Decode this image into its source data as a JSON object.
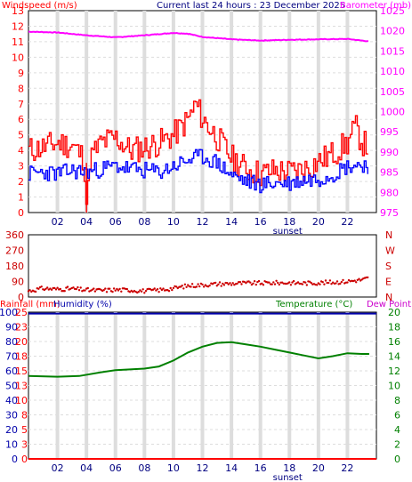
{
  "colors": {
    "wind_speed": "#ff0000",
    "wind_avg": "#0000ff",
    "barometer": "#ff00ff",
    "wind_dir": "#cc0000",
    "humidity": "#0000aa",
    "temperature": "#008000",
    "rainfall": "#ff0000",
    "dew_point": "#cc00cc",
    "grid": "#dddddd",
    "frame": "#000000"
  },
  "header": {
    "title": "Current last 24 hours : 23 December 2025"
  },
  "chart_data": [
    {
      "type": "line",
      "name": "wind-barometer",
      "left_label": "Windspeed (m/s)",
      "right_label": "Barometer (mb)",
      "x_ticks": [
        "02",
        "04",
        "06",
        "08",
        "10",
        "12",
        "14",
        "16",
        "18",
        "20",
        "22"
      ],
      "x_annotation": "sunset",
      "sunset_hour": 18,
      "x_range": [
        0,
        24
      ],
      "y_left_ticks": [
        "0",
        "1",
        "2",
        "3",
        "4",
        "5",
        "6",
        "7",
        "8",
        "9",
        "10",
        "11",
        "12",
        "13"
      ],
      "y_left_range": [
        0,
        13
      ],
      "y_right_ticks": [
        "975",
        "980",
        "985",
        "990",
        "995",
        "1000",
        "1005",
        "1010",
        "1015",
        "1020",
        "1025"
      ],
      "y_right_range": [
        975,
        1025
      ],
      "grid": true,
      "series": [
        {
          "key": "barometer",
          "axis": "right",
          "x": [
            0,
            2,
            4,
            6,
            8,
            10,
            11,
            12,
            14,
            16,
            18,
            20,
            22,
            23.5
          ],
          "y": [
            1019.8,
            1019.6,
            1018.9,
            1018.4,
            1018.9,
            1019.5,
            1019.3,
            1018.5,
            1017.9,
            1017.6,
            1017.8,
            1017.9,
            1018,
            1017.4
          ]
        },
        {
          "key": "wind_speed",
          "axis": "left",
          "x": [
            0,
            1,
            2,
            3,
            3.8,
            4,
            4.2,
            5,
            6,
            7,
            8,
            9,
            10,
            11,
            11.5,
            12,
            13,
            14,
            15,
            16,
            17,
            18,
            19,
            20,
            21,
            22,
            22.5,
            23,
            23.5
          ],
          "y": [
            4,
            4.2,
            4.5,
            4.3,
            3.5,
            0,
            3.5,
            4.5,
            4.8,
            4,
            4.2,
            4.5,
            5,
            6,
            7,
            6,
            4.8,
            3.5,
            2.8,
            2.5,
            2.7,
            2.6,
            2.8,
            3.3,
            3.8,
            4.5,
            5.5,
            4.5,
            4.2
          ]
        },
        {
          "key": "wind_avg",
          "axis": "left",
          "x": [
            0,
            1,
            2,
            3,
            4,
            5,
            6,
            7,
            8,
            9,
            10,
            11,
            12,
            13,
            14,
            15,
            16,
            17,
            18,
            19,
            20,
            21,
            22,
            23,
            23.5
          ],
          "y": [
            2.5,
            2.6,
            2.5,
            2.7,
            2.6,
            2.8,
            3,
            2.8,
            2.7,
            2.6,
            3,
            3.4,
            3.6,
            3.2,
            2.4,
            2,
            1.8,
            1.9,
            1.9,
            2.1,
            2.2,
            2.5,
            3,
            3.1,
            3
          ]
        }
      ]
    },
    {
      "type": "scatter",
      "name": "wind-direction",
      "y_left_ticks": [
        "0",
        "90",
        "180",
        "270",
        "360"
      ],
      "y_left_range": [
        0,
        360
      ],
      "y_right_ticks": [
        "N",
        "E",
        "S",
        "W",
        "N"
      ],
      "x_range": [
        0,
        24
      ],
      "grid": false,
      "series": [
        {
          "key": "wind_dir",
          "x": [
            0,
            1,
            2,
            3,
            4,
            5,
            6,
            7,
            8,
            9,
            10,
            11,
            12,
            13,
            14,
            15,
            16,
            17,
            18,
            19,
            20,
            21,
            22,
            23,
            23.5
          ],
          "y": [
            35,
            50,
            45,
            48,
            40,
            38,
            42,
            40,
            35,
            40,
            50,
            65,
            70,
            75,
            78,
            80,
            80,
            82,
            82,
            80,
            82,
            85,
            90,
            100,
            110
          ]
        }
      ]
    },
    {
      "type": "line",
      "name": "temp-humidity",
      "left_label_rain": "Rainfall (mm)",
      "left_label_humidity": "Humidity (%)",
      "right_label_temp": "Temperature (°C)",
      "right_label_dew": "Dew Point",
      "x_ticks": [
        "02",
        "04",
        "06",
        "08",
        "10",
        "12",
        "14",
        "16",
        "18",
        "20",
        "22"
      ],
      "x_annotation": "sunset",
      "sunset_hour": 18,
      "x_range": [
        0,
        24
      ],
      "y_humidity_ticks": [
        "0",
        "10",
        "20",
        "30",
        "40",
        "50",
        "60",
        "70",
        "80",
        "90",
        "100"
      ],
      "y_humidity_range": [
        0,
        100
      ],
      "y_rain_ticks": [
        "0",
        "3",
        "5",
        "8",
        "10",
        "13",
        "15",
        "18",
        "20",
        "23",
        "25"
      ],
      "y_rain_range": [
        0,
        25
      ],
      "y_temp_ticks": [
        "0",
        "2",
        "4",
        "6",
        "8",
        "10",
        "12",
        "14",
        "16",
        "18",
        "20"
      ],
      "y_temp_range": [
        0,
        20
      ],
      "grid": true,
      "series": [
        {
          "key": "humidity",
          "axis": "humidity",
          "x": [
            0,
            24
          ],
          "y": [
            99,
            99
          ]
        },
        {
          "key": "temperature",
          "axis": "temp",
          "x": [
            0,
            2,
            3.5,
            5,
            6,
            7,
            8,
            9,
            10,
            11,
            12,
            13,
            14,
            15,
            16,
            17,
            18,
            19,
            20,
            21,
            22,
            23,
            23.5
          ],
          "y": [
            11.3,
            11.2,
            11.3,
            11.8,
            12.1,
            12.2,
            12.3,
            12.6,
            13.4,
            14.5,
            15.3,
            15.8,
            15.9,
            15.6,
            15.3,
            14.9,
            14.5,
            14.1,
            13.7,
            14,
            14.4,
            14.3,
            14.3
          ]
        },
        {
          "key": "rainfall",
          "axis": "rain",
          "x": [
            0,
            24
          ],
          "y": [
            0,
            0
          ]
        }
      ]
    }
  ]
}
